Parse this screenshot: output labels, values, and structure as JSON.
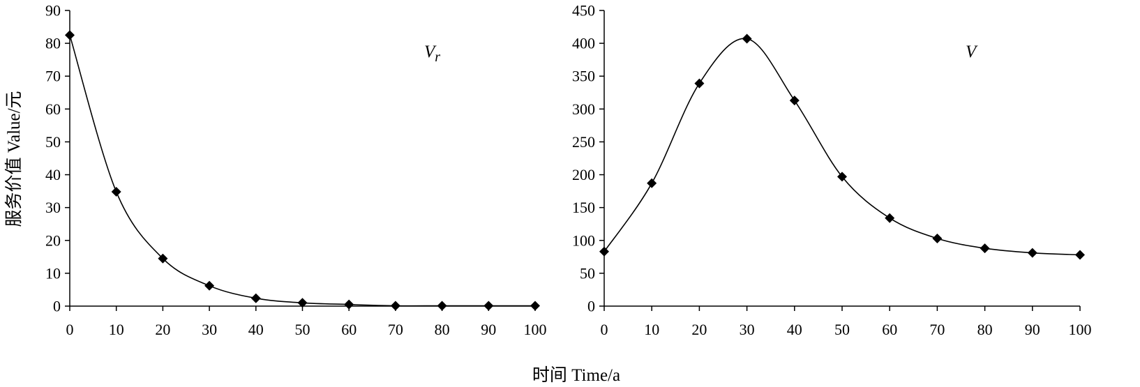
{
  "chart_data": [
    {
      "type": "line",
      "label": "V",
      "label_sub": "r",
      "x": [
        0,
        10,
        20,
        30,
        40,
        50,
        60,
        70,
        80,
        90,
        100
      ],
      "xlim": [
        0,
        100
      ],
      "xticks": [
        0,
        10,
        20,
        30,
        40,
        50,
        60,
        70,
        80,
        90,
        100
      ],
      "ylim": [
        0,
        90
      ],
      "yticks": [
        0,
        10,
        20,
        30,
        40,
        50,
        60,
        70,
        80,
        90
      ],
      "series": [
        {
          "values": [
            82.5,
            34.8,
            14.5,
            6.2,
            2.4,
            1.0,
            0.5,
            0.1,
            0.1,
            0.1,
            0.1
          ]
        }
      ],
      "marker": "diamond",
      "line": "smooth",
      "ylabel": "服务价值 Value/元"
    },
    {
      "type": "line",
      "label": "V",
      "x": [
        0,
        10,
        20,
        30,
        40,
        50,
        60,
        70,
        80,
        90,
        100
      ],
      "xlim": [
        0,
        100
      ],
      "xticks": [
        0,
        10,
        20,
        30,
        40,
        50,
        60,
        70,
        80,
        90,
        100
      ],
      "ylim": [
        0,
        450
      ],
      "yticks": [
        0,
        50,
        100,
        150,
        200,
        250,
        300,
        350,
        400,
        450
      ],
      "series": [
        {
          "values": [
            83,
            187,
            339,
            407,
            313,
            197,
            134,
            103,
            88,
            81,
            78
          ]
        }
      ],
      "marker": "diamond",
      "line": "smooth"
    }
  ],
  "xlabel": "时间 Time/a"
}
